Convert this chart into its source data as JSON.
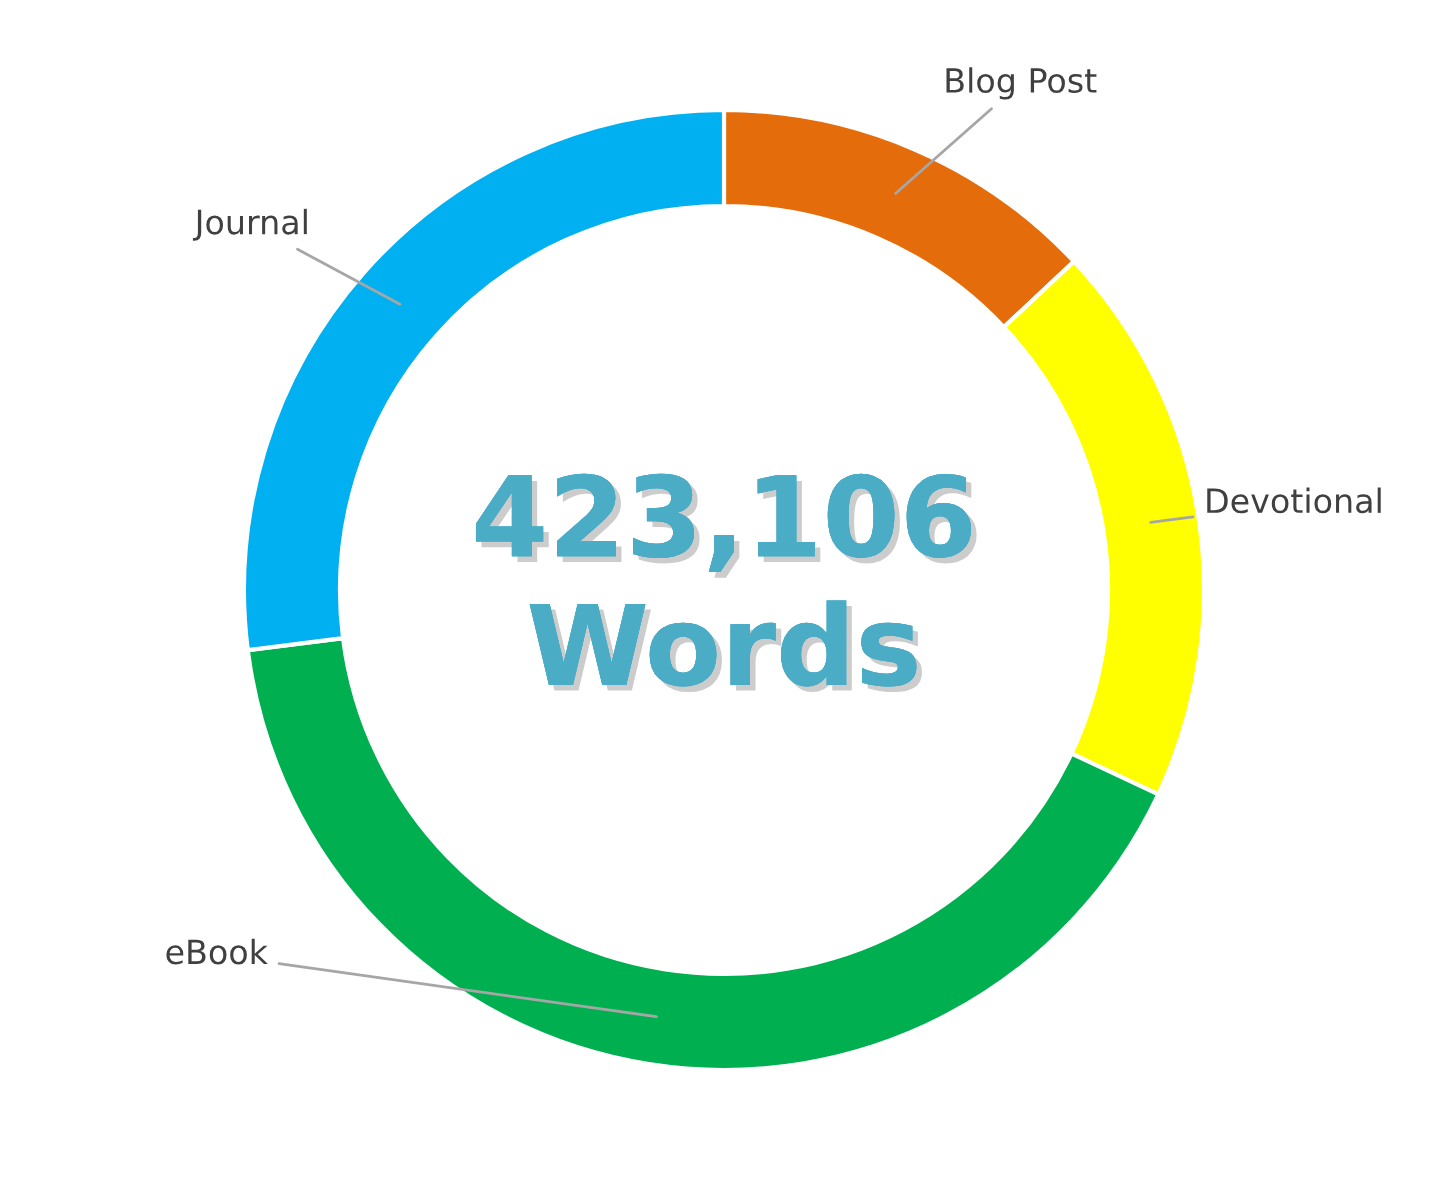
{
  "chart_data": {
    "type": "donut",
    "categories": [
      "Blog Post",
      "Devotional",
      "eBook",
      "Journal"
    ],
    "values": [
      13,
      19,
      41,
      27
    ],
    "colors": [
      "#e46c0a",
      "#ffff00",
      "#00b050",
      "#00b0f0"
    ],
    "annotations": [
      "423,106\nWords"
    ],
    "legend": false
  }
}
